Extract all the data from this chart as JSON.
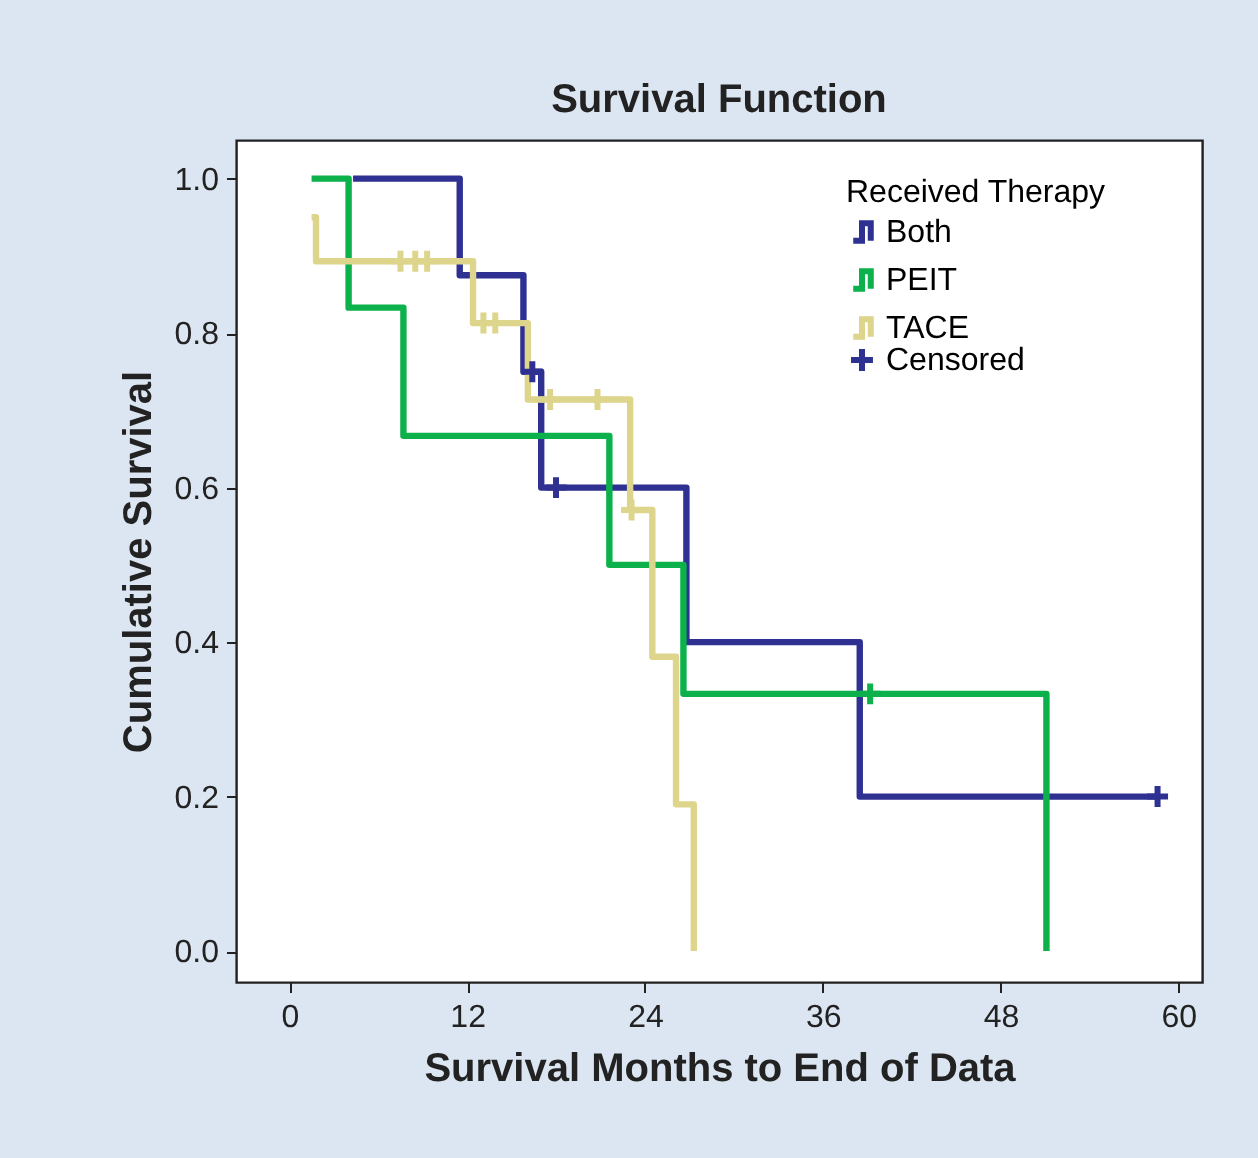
{
  "chart_data": {
    "type": "step",
    "title": "Survival Function",
    "xlabel": "Survival Months to End of Data",
    "ylabel": "Cumulative Survival",
    "legend_title": "Received Therapy",
    "legend": "top right",
    "grid": false,
    "xlim": [
      -3.6,
      61.6
    ],
    "xticks": [
      0,
      12,
      24,
      36,
      48,
      60
    ],
    "ylim": [
      -0.04,
      1.05
    ],
    "yticks": [
      {
        "value": 0,
        "label": "0.0"
      },
      {
        "value": 0.2,
        "label": "0.2"
      },
      {
        "value": 0.4,
        "label": "0.4"
      },
      {
        "value": 0.6,
        "label": "0.6"
      },
      {
        "value": 0.8,
        "label": "0.8"
      },
      {
        "value": 1,
        "label": "1.0"
      }
    ],
    "series": [
      {
        "name": "Both",
        "color": "#2e3192",
        "line_style": "solid",
        "x": [
          4.3,
          11.5,
          15.8,
          17,
          26.8,
          38.5,
          58.6
        ],
        "values": [
          1,
          0.875,
          0.75,
          0.6,
          0.4,
          0.2,
          0.2
        ]
      },
      {
        "name": "PEIT",
        "color": "#0db14b",
        "line_style": "solid",
        "x": [
          1.5,
          4,
          7.7,
          21.6,
          26.6,
          51.1
        ],
        "values": [
          1,
          0.833,
          0.667,
          0.5,
          0.333,
          0
        ]
      },
      {
        "name": "TACE",
        "color": "#ddd58b",
        "line_style": "solid",
        "x": [
          1.5,
          1.8,
          12.4,
          16.1,
          23,
          24.5,
          26.1,
          27.3
        ],
        "values": [
          0.95,
          0.893,
          0.813,
          0.714,
          0.571,
          0.381,
          0.19,
          0
        ]
      },
      {
        "type": "scatter",
        "name": "Censored",
        "color": "#2e3192",
        "marker": "cross",
        "x": [
          16.4,
          18,
          58.6
        ],
        "values": [
          0.75,
          0.6,
          0.2
        ]
      },
      {
        "type": "scatter",
        "color": "#0db14b",
        "marker": "cross",
        "x": [
          39.2
        ],
        "values": [
          0.333
        ]
      },
      {
        "type": "scatter",
        "color": "#ddd58b",
        "marker": "cross",
        "x": [
          7.5,
          8.5,
          9.3,
          13.1,
          13.9,
          17.6,
          20.8,
          23.1
        ],
        "values": [
          0.893,
          0.893,
          0.893,
          0.813,
          0.813,
          0.714,
          0.714,
          0.571
        ]
      }
    ]
  }
}
